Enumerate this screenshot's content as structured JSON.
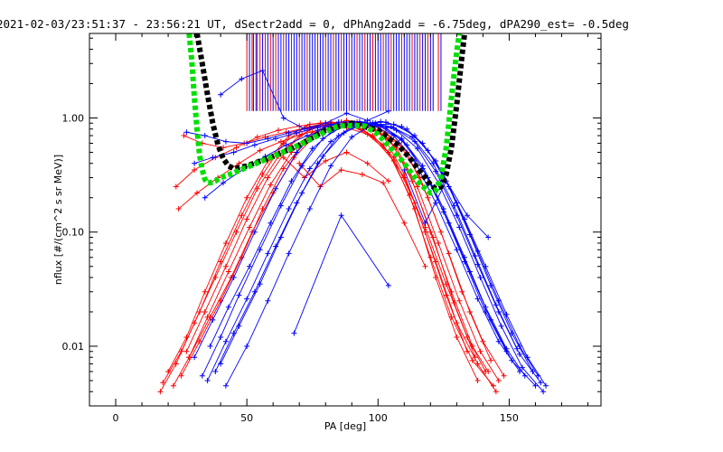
{
  "chart_data": {
    "type": "line",
    "title": "2021-02-03/23:51:37 - 23:56:21 UT, dSectr2add = 0, dPhAng2add = -6.75deg, dPA290_est=  -0.5deg",
    "xlabel": "PA [deg]",
    "ylabel": "nflux [#/(cm^2 s sr MeV)]",
    "xlim": [
      -10,
      185
    ],
    "ylim": [
      0.003,
      5.5
    ],
    "yscale": "log",
    "grid": false,
    "x_ticks": [
      0,
      50,
      100,
      150
    ],
    "x_tick_labels": [
      "0",
      "50",
      "100",
      "150"
    ],
    "y_ticks": [
      0.01,
      0.1,
      1.0
    ],
    "y_tick_labels": [
      "0.01",
      "0.10",
      "1.00"
    ],
    "colors": {
      "red": "#ff0000",
      "blue": "#0000ff",
      "black": "#000000",
      "green": "#00e000"
    },
    "series": [
      {
        "color": "black",
        "style": "thick-dashed",
        "x": [
          31,
          33,
          35,
          37,
          39,
          41,
          43,
          45,
          50,
          60,
          70,
          80,
          90,
          100,
          108,
          112,
          116,
          120,
          122,
          124,
          126,
          128,
          130,
          132,
          133
        ],
        "y": [
          5.5,
          3.0,
          1.6,
          0.9,
          0.58,
          0.44,
          0.38,
          0.36,
          0.38,
          0.46,
          0.58,
          0.78,
          0.9,
          0.78,
          0.57,
          0.45,
          0.34,
          0.26,
          0.24,
          0.25,
          0.32,
          0.55,
          1.3,
          3.5,
          5.5
        ]
      },
      {
        "color": "green",
        "style": "thick-dashed",
        "x": [
          28,
          29,
          30,
          31,
          32,
          33,
          34,
          35,
          36,
          38,
          40,
          45,
          50,
          60,
          70,
          80,
          85,
          90,
          95,
          100,
          105,
          110,
          115,
          118,
          120,
          122,
          124,
          126,
          127,
          128,
          129,
          130,
          131
        ],
        "y": [
          5.5,
          3.2,
          1.5,
          0.8,
          0.47,
          0.35,
          0.29,
          0.27,
          0.27,
          0.28,
          0.3,
          0.33,
          0.37,
          0.46,
          0.58,
          0.76,
          0.85,
          0.86,
          0.85,
          0.72,
          0.54,
          0.4,
          0.28,
          0.24,
          0.22,
          0.23,
          0.3,
          0.55,
          0.9,
          1.5,
          2.4,
          3.8,
          5.5
        ]
      }
    ],
    "vertical_markers": {
      "y_bottom": 1.15,
      "y_top": 5.5,
      "red_x": [
        50,
        52,
        54,
        55,
        57,
        59,
        61,
        64,
        67,
        70,
        73,
        77,
        80,
        83,
        86,
        89,
        92,
        95,
        98,
        102,
        105,
        109,
        113,
        116,
        119,
        123
      ],
      "blue_x": [
        51,
        52.5,
        53.5,
        56,
        58,
        60,
        62,
        63,
        65,
        66,
        68,
        69,
        71,
        72,
        74,
        75,
        76,
        78,
        79,
        81,
        82,
        84,
        85,
        87,
        88,
        90,
        91,
        93,
        94,
        96,
        97,
        99,
        100,
        101,
        103,
        104,
        106,
        107,
        108,
        110,
        111,
        112,
        114,
        115,
        117,
        118,
        120,
        121,
        124
      ]
    },
    "red_curves": [
      {
        "x": [
          18,
          25,
          32,
          40,
          48,
          56,
          64,
          72,
          80,
          88,
          96,
          104,
          112,
          120,
          128,
          136,
          144
        ],
        "y": [
          0.0048,
          0.009,
          0.02,
          0.055,
          0.14,
          0.32,
          0.6,
          0.82,
          0.9,
          0.82,
          0.72,
          0.5,
          0.21,
          0.06,
          0.018,
          0.0075,
          0.0045
        ]
      },
      {
        "x": [
          20,
          27,
          34,
          42,
          50,
          58,
          66,
          74,
          82,
          90,
          98,
          106,
          114,
          122,
          130,
          138
        ],
        "y": [
          0.006,
          0.012,
          0.03,
          0.08,
          0.2,
          0.42,
          0.7,
          0.88,
          0.92,
          0.85,
          0.68,
          0.42,
          0.16,
          0.04,
          0.012,
          0.005
        ]
      },
      {
        "x": [
          22,
          28,
          35,
          43,
          51,
          59,
          67,
          75,
          83,
          91,
          99,
          107,
          115,
          123,
          131,
          139,
          146
        ],
        "y": [
          0.0045,
          0.008,
          0.018,
          0.045,
          0.11,
          0.26,
          0.5,
          0.75,
          0.88,
          0.9,
          0.78,
          0.55,
          0.25,
          0.08,
          0.025,
          0.009,
          0.005
        ]
      },
      {
        "x": [
          25,
          32,
          40,
          48,
          56,
          64,
          72,
          80,
          88,
          96,
          104,
          112,
          120,
          128,
          136,
          142
        ],
        "y": [
          0.0055,
          0.011,
          0.025,
          0.06,
          0.16,
          0.36,
          0.62,
          0.85,
          0.95,
          0.9,
          0.66,
          0.33,
          0.1,
          0.03,
          0.01,
          0.006
        ]
      },
      {
        "x": [
          17,
          23,
          30,
          38,
          46,
          54,
          62,
          70,
          78,
          86,
          94,
          102,
          110,
          118,
          126,
          134,
          141
        ],
        "y": [
          0.004,
          0.007,
          0.016,
          0.04,
          0.1,
          0.24,
          0.46,
          0.7,
          0.86,
          0.92,
          0.8,
          0.58,
          0.3,
          0.11,
          0.035,
          0.012,
          0.006
        ]
      },
      {
        "x": [
          27,
          34,
          42,
          50,
          58,
          66,
          74,
          82,
          90,
          98,
          106,
          114,
          122,
          130,
          138,
          145
        ],
        "y": [
          0.009,
          0.02,
          0.05,
          0.13,
          0.3,
          0.56,
          0.8,
          0.9,
          0.86,
          0.7,
          0.45,
          0.18,
          0.055,
          0.016,
          0.007,
          0.004
        ]
      },
      {
        "x": [
          23,
          30,
          38,
          46,
          54,
          62,
          70,
          78,
          86,
          94,
          102,
          110,
          118,
          126,
          134
        ],
        "y": [
          0.25,
          0.35,
          0.45,
          0.55,
          0.68,
          0.78,
          0.85,
          0.9,
          0.92,
          0.88,
          0.7,
          0.32,
          0.1,
          0.028,
          0.009
        ]
      },
      {
        "x": [
          26,
          33,
          41,
          49,
          57,
          65,
          73,
          81,
          89,
          97,
          105,
          113,
          121,
          129,
          137
        ],
        "y": [
          0.7,
          0.6,
          0.55,
          0.6,
          0.68,
          0.75,
          0.82,
          0.88,
          0.9,
          0.85,
          0.62,
          0.28,
          0.09,
          0.024,
          0.008
        ]
      },
      {
        "x": [
          24,
          31,
          39,
          47,
          55,
          63,
          71,
          79,
          87,
          95,
          103,
          111,
          119,
          127,
          135,
          143
        ],
        "y": [
          0.16,
          0.22,
          0.3,
          0.4,
          0.52,
          0.62,
          0.72,
          0.8,
          0.86,
          0.84,
          0.74,
          0.5,
          0.2,
          0.065,
          0.02,
          0.0075
        ]
      },
      {
        "x": [
          70,
          78,
          86,
          94,
          102,
          110,
          118
        ],
        "y": [
          0.4,
          0.25,
          0.35,
          0.32,
          0.27,
          0.12,
          0.05
        ]
      },
      {
        "x": [
          64,
          72,
          80,
          88,
          96,
          104
        ],
        "y": [
          0.45,
          0.3,
          0.42,
          0.5,
          0.4,
          0.28
        ]
      },
      {
        "x": [
          28,
          36,
          44,
          52,
          60,
          68,
          76,
          84,
          92,
          100,
          108,
          116,
          124,
          132,
          140,
          148
        ],
        "y": [
          0.008,
          0.018,
          0.04,
          0.1,
          0.22,
          0.45,
          0.7,
          0.86,
          0.92,
          0.84,
          0.6,
          0.3,
          0.1,
          0.03,
          0.011,
          0.0055
        ]
      }
    ],
    "blue_curves": [
      {
        "x": [
          33,
          40,
          47,
          55,
          63,
          71,
          79,
          87,
          95,
          103,
          111,
          119,
          127,
          135,
          143,
          151,
          160
        ],
        "y": [
          0.0055,
          0.012,
          0.028,
          0.07,
          0.17,
          0.38,
          0.66,
          0.86,
          0.92,
          0.82,
          0.58,
          0.3,
          0.12,
          0.045,
          0.017,
          0.0075,
          0.0045
        ]
      },
      {
        "x": [
          35,
          42,
          50,
          58,
          66,
          74,
          82,
          90,
          98,
          106,
          114,
          122,
          130,
          138,
          146,
          154,
          162
        ],
        "y": [
          0.005,
          0.011,
          0.026,
          0.065,
          0.16,
          0.36,
          0.62,
          0.84,
          0.9,
          0.82,
          0.62,
          0.34,
          0.14,
          0.052,
          0.02,
          0.0085,
          0.0048
        ]
      },
      {
        "x": [
          38,
          45,
          53,
          61,
          69,
          77,
          85,
          93,
          101,
          109,
          117,
          125,
          133,
          141,
          149,
          157,
          164
        ],
        "y": [
          0.006,
          0.013,
          0.03,
          0.075,
          0.18,
          0.4,
          0.7,
          0.88,
          0.93,
          0.84,
          0.6,
          0.32,
          0.13,
          0.05,
          0.019,
          0.008,
          0.0045
        ]
      },
      {
        "x": [
          30,
          37,
          45,
          53,
          61,
          69,
          77,
          85,
          93,
          101,
          109,
          117,
          125,
          133,
          141,
          149,
          156
        ],
        "y": [
          0.008,
          0.017,
          0.04,
          0.1,
          0.24,
          0.5,
          0.78,
          0.92,
          0.93,
          0.86,
          0.66,
          0.38,
          0.16,
          0.06,
          0.022,
          0.0095,
          0.0055
        ]
      },
      {
        "x": [
          40,
          47,
          55,
          63,
          71,
          79,
          87,
          95,
          103,
          111,
          119,
          127,
          135,
          143,
          151,
          159
        ],
        "y": [
          0.007,
          0.015,
          0.035,
          0.09,
          0.22,
          0.46,
          0.74,
          0.9,
          0.92,
          0.8,
          0.52,
          0.25,
          0.095,
          0.034,
          0.013,
          0.006
        ]
      },
      {
        "x": [
          27,
          34,
          42,
          50,
          58,
          66,
          74,
          82,
          90,
          98,
          106,
          114,
          122,
          130,
          138,
          146,
          154
        ],
        "y": [
          0.75,
          0.7,
          0.62,
          0.6,
          0.66,
          0.74,
          0.82,
          0.88,
          0.9,
          0.86,
          0.7,
          0.42,
          0.18,
          0.07,
          0.026,
          0.011,
          0.006
        ]
      },
      {
        "x": [
          30,
          37,
          45,
          53,
          61,
          69,
          77,
          85,
          93,
          101,
          109,
          117,
          125,
          133,
          141,
          149
        ],
        "y": [
          0.4,
          0.45,
          0.5,
          0.58,
          0.66,
          0.74,
          0.82,
          0.88,
          0.9,
          0.84,
          0.64,
          0.36,
          0.15,
          0.055,
          0.02,
          0.009
        ]
      },
      {
        "x": [
          34,
          41,
          49,
          57,
          65,
          73,
          81,
          89,
          97,
          105,
          113,
          121,
          129,
          137,
          145,
          153
        ],
        "y": [
          0.2,
          0.27,
          0.36,
          0.46,
          0.58,
          0.7,
          0.8,
          0.87,
          0.9,
          0.84,
          0.68,
          0.4,
          0.17,
          0.062,
          0.023,
          0.0095
        ]
      },
      {
        "x": [
          40,
          48,
          56,
          64,
          72,
          80,
          88,
          96,
          104
        ],
        "y": [
          1.6,
          2.2,
          2.6,
          1.0,
          0.8,
          0.9,
          1.1,
          0.95,
          1.15
        ]
      },
      {
        "x": [
          68,
          86,
          104
        ],
        "y": [
          0.013,
          0.14,
          0.034
        ]
      },
      {
        "x": [
          36,
          43,
          51,
          59,
          67,
          75,
          83,
          91,
          99,
          107,
          115,
          123,
          131,
          139,
          147,
          155,
          163
        ],
        "y": [
          0.01,
          0.022,
          0.05,
          0.12,
          0.28,
          0.54,
          0.78,
          0.9,
          0.9,
          0.78,
          0.54,
          0.27,
          0.11,
          0.04,
          0.015,
          0.0065,
          0.004
        ]
      },
      {
        "x": [
          42,
          50,
          58,
          66,
          74,
          82,
          90,
          98,
          106,
          114,
          122,
          130,
          138,
          146,
          154,
          161
        ],
        "y": [
          0.0045,
          0.01,
          0.025,
          0.065,
          0.16,
          0.38,
          0.68,
          0.88,
          0.88,
          0.7,
          0.42,
          0.18,
          0.068,
          0.025,
          0.01,
          0.0055
        ]
      },
      {
        "x": [
          110,
          118,
          126,
          134,
          142
        ],
        "y": [
          0.35,
          0.12,
          0.28,
          0.14,
          0.09
        ]
      }
    ]
  }
}
